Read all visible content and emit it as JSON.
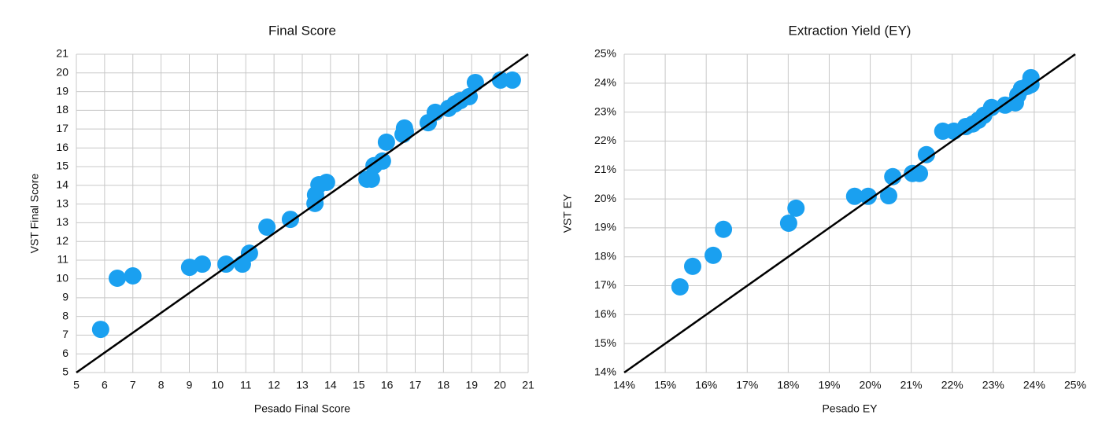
{
  "chart_data": [
    {
      "type": "scatter",
      "title": "Final Score",
      "x_label": "Pesado Final Score",
      "y_label": "VST Final Score",
      "xlim": [
        5,
        21
      ],
      "ylim": [
        5,
        21
      ],
      "xticks": [
        5,
        6,
        7,
        8,
        9,
        10,
        11,
        12,
        13,
        14,
        15,
        16,
        17,
        18,
        19,
        20,
        21
      ],
      "yticks": [
        5,
        {
          "value": 5.94,
          "label": "6"
        },
        {
          "value": 6.88,
          "label": "7"
        },
        {
          "value": 7.82,
          "label": "8"
        },
        {
          "value": 8.76,
          "label": "9"
        },
        {
          "value": 9.71,
          "label": "10"
        },
        {
          "value": 10.65,
          "label": "11"
        },
        {
          "value": 11.59,
          "label": "12"
        },
        {
          "value": 12.53,
          "label": "13"
        },
        {
          "value": 13.47,
          "label": "13"
        },
        {
          "value": 14.41,
          "label": "14"
        },
        {
          "value": 15.35,
          "label": "15"
        },
        {
          "value": 16.29,
          "label": "16"
        },
        {
          "value": 17.24,
          "label": "17"
        },
        {
          "value": 18.18,
          "label": "18"
        },
        {
          "value": 19.12,
          "label": "19"
        },
        {
          "value": 20.06,
          "label": "20"
        },
        21
      ],
      "grid": true,
      "reference_line": {
        "color": "#000000",
        "x": [
          5,
          21
        ],
        "y": [
          5,
          21
        ]
      },
      "series": [
        {
          "color": "#1aa0f0",
          "x": [
            5.86,
            6.45,
            7.0,
            9.01,
            9.46,
            10.3,
            10.88,
            11.13,
            11.75,
            12.58,
            13.45,
            13.47,
            13.59,
            13.86,
            15.29,
            15.45,
            15.54,
            15.84,
            15.98,
            16.57,
            16.62,
            16.65,
            17.46,
            17.71,
            18.18,
            18.41,
            18.6,
            18.91,
            19.13,
            20.02,
            20.44
          ],
          "y": [
            7.17,
            9.74,
            9.86,
            10.29,
            10.45,
            10.45,
            10.45,
            11.0,
            12.31,
            12.7,
            13.5,
            13.93,
            14.44,
            14.56,
            14.72,
            14.72,
            15.4,
            15.63,
            16.58,
            16.97,
            17.29,
            17.1,
            17.56,
            18.08,
            18.28,
            18.51,
            18.67,
            18.87,
            19.58,
            19.7,
            19.7
          ]
        }
      ]
    },
    {
      "type": "scatter",
      "title": "Extraction Yield (EY)",
      "x_label": "Pesado EY",
      "y_label": "VST EY",
      "xlim": [
        14,
        25
      ],
      "ylim": [
        14,
        25
      ],
      "xticks": [
        {
          "value": 14,
          "label": "14%"
        },
        {
          "value": 15,
          "label": "15%"
        },
        {
          "value": 16,
          "label": "16%"
        },
        {
          "value": 17,
          "label": "17%"
        },
        {
          "value": 18,
          "label": "18%"
        },
        {
          "value": 19,
          "label": "19%"
        },
        {
          "value": 20,
          "label": "20%"
        },
        {
          "value": 21,
          "label": "21%"
        },
        {
          "value": 22,
          "label": "22%"
        },
        {
          "value": 23,
          "label": "23%"
        },
        {
          "value": 24,
          "label": "24%"
        },
        {
          "value": 25,
          "label": "25%"
        }
      ],
      "yticks": [
        {
          "value": 14,
          "label": "14%"
        },
        {
          "value": 15,
          "label": "15%"
        },
        {
          "value": 16,
          "label": "16%"
        },
        {
          "value": 17,
          "label": "17%"
        },
        {
          "value": 18,
          "label": "18%"
        },
        {
          "value": 19,
          "label": "19%"
        },
        {
          "value": 20,
          "label": "20%"
        },
        {
          "value": 21,
          "label": "21%"
        },
        {
          "value": 22,
          "label": "22%"
        },
        {
          "value": 23,
          "label": "23%"
        },
        {
          "value": 24,
          "label": "24%"
        },
        {
          "value": 25,
          "label": "25%"
        }
      ],
      "grid": true,
      "reference_line": {
        "color": "#000000",
        "x": [
          14,
          25
        ],
        "y": [
          14,
          25
        ]
      },
      "series": [
        {
          "color": "#1aa0f0",
          "x": [
            15.36,
            15.67,
            16.17,
            16.42,
            18.01,
            18.19,
            19.62,
            19.95,
            20.45,
            20.55,
            21.03,
            21.2,
            21.37,
            21.77,
            22.04,
            22.33,
            22.5,
            22.64,
            22.77,
            22.96,
            23.29,
            23.54,
            23.6,
            23.69,
            23.83,
            23.92,
            23.92
          ],
          "y": [
            16.96,
            17.67,
            18.05,
            18.95,
            19.16,
            19.68,
            20.09,
            20.09,
            20.11,
            20.77,
            20.88,
            20.88,
            21.53,
            22.34,
            22.34,
            22.5,
            22.59,
            22.72,
            22.89,
            23.16,
            23.24,
            23.32,
            23.59,
            23.81,
            23.89,
            23.95,
            24.19
          ]
        }
      ]
    }
  ]
}
